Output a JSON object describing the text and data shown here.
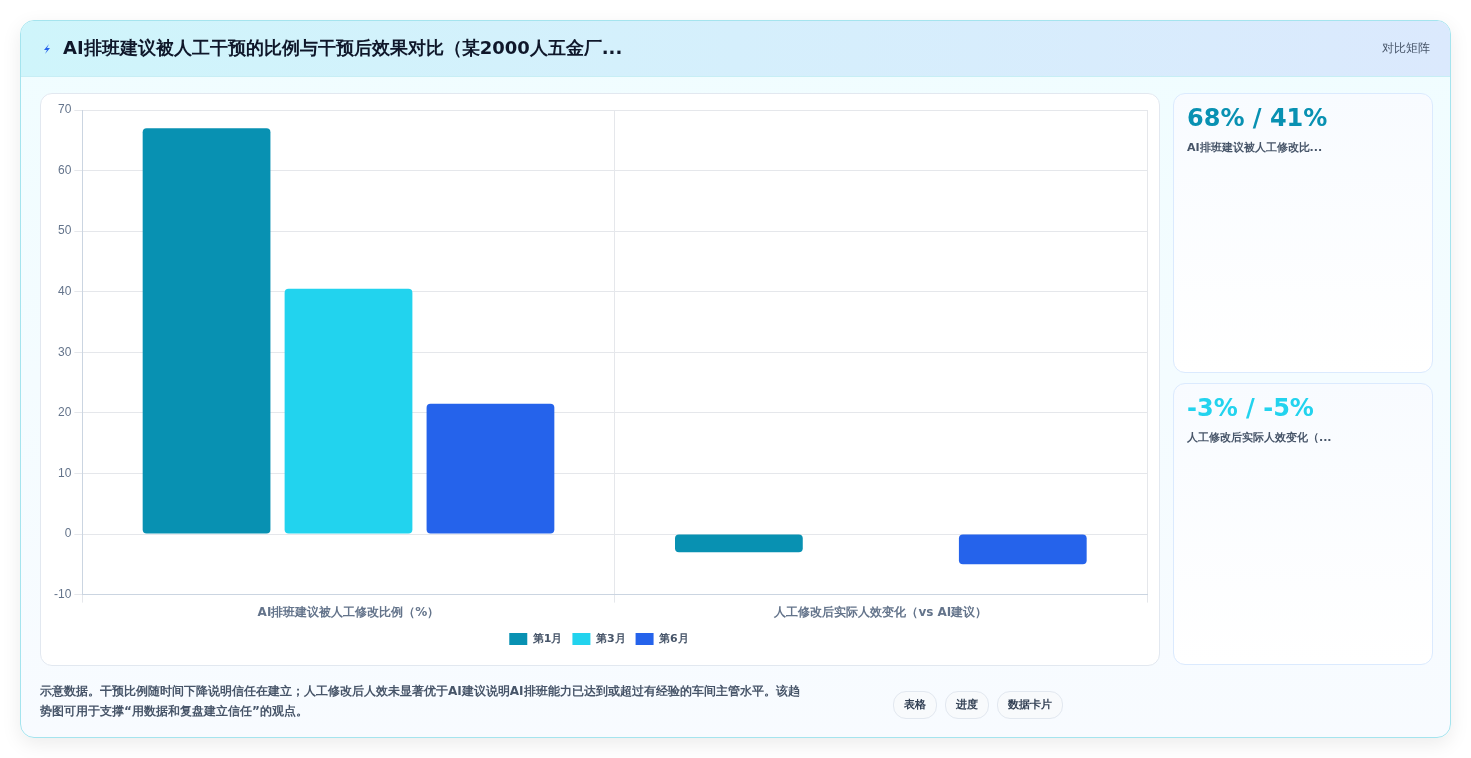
{
  "chart_data": {
    "type": "bar",
    "title": "AI排班建议被人工干预的比例与干预后效果对比（某2000人五金厂...",
    "categories": [
      "AI排班建议被人工修改比例（%）",
      "人工修改后实际人效变化（vs AI建议）"
    ],
    "series": [
      {
        "name": "第1月",
        "color": "#0891b2",
        "values": [
          67,
          -3
        ]
      },
      {
        "name": "第3月",
        "color": "#22d3ee",
        "values": [
          40.5,
          null
        ]
      },
      {
        "name": "第6月",
        "color": "#2563eb",
        "values": [
          21.5,
          -5
        ]
      }
    ],
    "ylim": [
      -10,
      70
    ],
    "yticks": [
      -10,
      0,
      10,
      20,
      30,
      40,
      50,
      60,
      70
    ],
    "grid": true,
    "legend": "bottom",
    "annotations": [
      "对比矩阵",
      "68% / 41%",
      "AI排班建议被人工修改比...",
      "-3% / -5%",
      "人工修改后实际人效变化（...",
      "示意数据。干预比例随时间下降说明信任在建立；人工修改后人效未显著优于AI建议说明AI排班能力已达到或超过有经验的车间主管水平。该趋势图可用于支撑“用数据和复盘建立信任”的观点。",
      "表格",
      "进度",
      "数据卡片"
    ]
  }
}
